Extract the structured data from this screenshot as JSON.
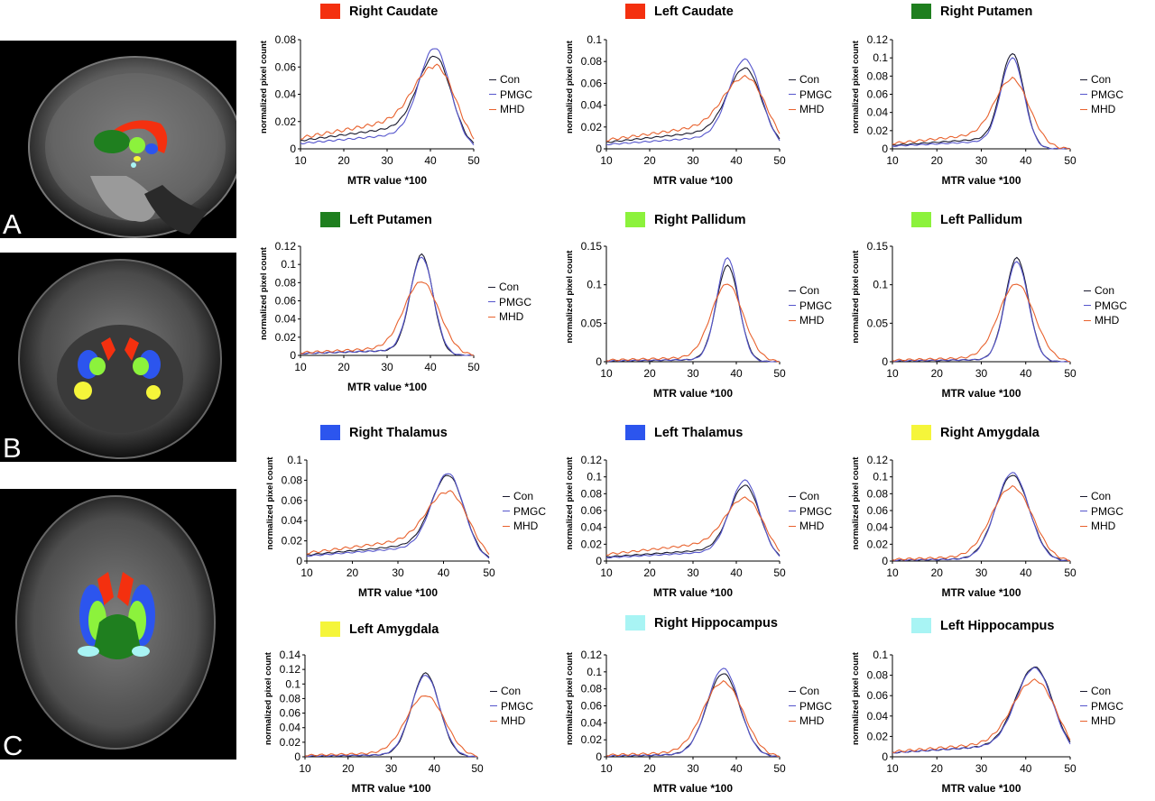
{
  "colors": {
    "con": "#1a1a2e",
    "pmgc": "#5555cc",
    "mhd": "#e8622e",
    "caudate": "#f4300f",
    "putamen": "#1f7f1f",
    "pallidum": "#8cf23c",
    "thalamus": "#2c55ee",
    "amygdala": "#f5f53a",
    "hippocampus": "#a8f4f4"
  },
  "panels": [
    {
      "letter": "A",
      "view": "sagittal"
    },
    {
      "letter": "B",
      "view": "coronal"
    },
    {
      "letter": "C",
      "view": "axial"
    }
  ],
  "legend": [
    "Con",
    "PMGC",
    "MHD"
  ],
  "chart_data": [
    {
      "type": "line",
      "title": "Right Caudate",
      "swatch": "caudate",
      "xlabel": "MTR value *100",
      "ylabel": "normalized pixel count",
      "xlim": [
        10,
        50
      ],
      "ylim": [
        0,
        0.08
      ],
      "xticks": [
        "10",
        "20",
        "30",
        "40",
        "50"
      ],
      "yticks": [
        "0",
        "0.02",
        "0.04",
        "0.06",
        "0.08"
      ],
      "peak": 41,
      "peaks": [
        0.068,
        0.074,
        0.06
      ],
      "base": [
        0.006,
        0.004,
        0.008
      ],
      "width": [
        3.8,
        3.6,
        4.4
      ],
      "mhdBroad": 1.0
    },
    {
      "type": "line",
      "title": "Left Caudate",
      "swatch": "caudate",
      "xlabel": "MTR value *100",
      "ylabel": "normalized pixel count",
      "xlim": [
        10,
        50
      ],
      "ylim": [
        0,
        0.1
      ],
      "xticks": [
        "10",
        "20",
        "30",
        "40",
        "50"
      ],
      "yticks": [
        "0",
        "0.02",
        "0.04",
        "0.06",
        "0.08",
        "0.1"
      ],
      "peak": 42,
      "peaks": [
        0.074,
        0.082,
        0.065
      ],
      "base": [
        0.006,
        0.004,
        0.008
      ],
      "width": [
        3.9,
        3.7,
        4.5
      ],
      "mhdBroad": 1.0
    },
    {
      "type": "line",
      "title": "Right Putamen",
      "swatch": "putamen",
      "xlabel": "MTR value *100",
      "ylabel": "normalized pixel count",
      "xlim": [
        10,
        50
      ],
      "ylim": [
        0,
        0.12
      ],
      "xticks": [
        "10",
        "20",
        "30",
        "40",
        "50"
      ],
      "yticks": [
        "0",
        "0.02",
        "0.04",
        "0.06",
        "0.08",
        "0.1",
        "0.12"
      ],
      "peak": 37,
      "peaks": [
        0.105,
        0.1,
        0.076
      ],
      "base": [
        0.004,
        0.003,
        0.006
      ],
      "width": [
        2.6,
        2.6,
        3.6
      ],
      "mhdBroad": 1.2
    },
    {
      "type": "line",
      "title": "Left Putamen",
      "swatch": "putamen",
      "xlabel": "MTR value *100",
      "ylabel": "normalized pixel count",
      "xlim": [
        10,
        50
      ],
      "ylim": [
        0,
        0.12
      ],
      "xticks": [
        "10",
        "20",
        "30",
        "40",
        "50"
      ],
      "yticks": [
        "0",
        "0.02",
        "0.04",
        "0.06",
        "0.08",
        "0.1",
        "0.12"
      ],
      "peak": 38,
      "peaks": [
        0.111,
        0.108,
        0.08
      ],
      "base": [
        0.002,
        0.002,
        0.003
      ],
      "width": [
        2.6,
        2.7,
        3.8
      ],
      "mhdBroad": 1.2
    },
    {
      "type": "line",
      "title": "Right Pallidum",
      "swatch": "pallidum",
      "xlabel": "MTR value *100",
      "ylabel": "normalized pixel count",
      "xlim": [
        10,
        50
      ],
      "ylim": [
        0,
        0.15
      ],
      "xticks": [
        "10",
        "20",
        "30",
        "40",
        "50"
      ],
      "yticks": [
        "0",
        "0.05",
        "0.1",
        "0.15"
      ],
      "peak": 38,
      "peaks": [
        0.125,
        0.135,
        0.1
      ],
      "base": [
        0.001,
        0.001,
        0.002
      ],
      "width": [
        2.6,
        2.5,
        3.5
      ],
      "mhdBroad": 1.3
    },
    {
      "type": "line",
      "title": "Left Pallidum",
      "swatch": "pallidum",
      "xlabel": "MTR value *100",
      "ylabel": "normalized pixel count",
      "xlim": [
        10,
        50
      ],
      "ylim": [
        0,
        0.15
      ],
      "xticks": [
        "10",
        "20",
        "30",
        "40",
        "50"
      ],
      "yticks": [
        "0",
        "0.05",
        "0.1",
        "0.15"
      ],
      "peak": 38,
      "peaks": [
        0.135,
        0.13,
        0.1
      ],
      "base": [
        0.001,
        0.001,
        0.002
      ],
      "width": [
        2.6,
        2.6,
        3.8
      ],
      "mhdBroad": 1.3
    },
    {
      "type": "line",
      "title": "Right Thalamus",
      "swatch": "thalamus",
      "xlabel": "MTR value *100",
      "ylabel": "normalized pixel count",
      "xlim": [
        10,
        50
      ],
      "ylim": [
        0,
        0.1
      ],
      "xticks": [
        "10",
        "20",
        "30",
        "40",
        "50"
      ],
      "yticks": [
        "0",
        "0.02",
        "0.04",
        "0.06",
        "0.08",
        "0.1"
      ],
      "peak": 41,
      "peaks": [
        0.085,
        0.087,
        0.068
      ],
      "base": [
        0.006,
        0.005,
        0.008
      ],
      "width": [
        3.6,
        3.5,
        4.2
      ],
      "mhdBroad": 1.0
    },
    {
      "type": "line",
      "title": "Left Thalamus",
      "swatch": "thalamus",
      "xlabel": "MTR value *100",
      "ylabel": "normalized pixel count",
      "xlim": [
        10,
        50
      ],
      "ylim": [
        0,
        0.12
      ],
      "xticks": [
        "10",
        "20",
        "30",
        "40",
        "50"
      ],
      "yticks": [
        "0",
        "0.02",
        "0.04",
        "0.06",
        "0.08",
        "0.1",
        "0.12"
      ],
      "peak": 42,
      "peaks": [
        0.09,
        0.096,
        0.074
      ],
      "base": [
        0.005,
        0.004,
        0.008
      ],
      "width": [
        3.5,
        3.4,
        4.1
      ],
      "mhdBroad": 1.0
    },
    {
      "type": "line",
      "title": "Right Amygdala",
      "swatch": "amygdala",
      "xlabel": "MTR value *100",
      "ylabel": "normalized pixel count",
      "xlim": [
        10,
        50
      ],
      "ylim": [
        0,
        0.12
      ],
      "xticks": [
        "10",
        "20",
        "30",
        "40",
        "50"
      ],
      "yticks": [
        "0",
        "0.02",
        "0.04",
        "0.06",
        "0.08",
        "0.1",
        "0.12"
      ],
      "peak": 37,
      "peaks": [
        0.102,
        0.105,
        0.087
      ],
      "base": [
        0.001,
        0.001,
        0.002
      ],
      "width": [
        3.8,
        3.7,
        4.4
      ],
      "mhdBroad": 1.0
    },
    {
      "type": "line",
      "title": "Left Amygdala",
      "swatch": "amygdala",
      "xlabel": "MTR value *100",
      "ylabel": "normalized pixel count",
      "xlim": [
        10,
        50
      ],
      "ylim": [
        0,
        0.14
      ],
      "xticks": [
        "10",
        "20",
        "30",
        "40",
        "50"
      ],
      "yticks": [
        "0",
        "0.02",
        "0.04",
        "0.06",
        "0.08",
        "0.1",
        "0.12",
        "0.14"
      ],
      "peak": 38,
      "peaks": [
        0.115,
        0.112,
        0.083
      ],
      "base": [
        0.001,
        0.001,
        0.002
      ],
      "width": [
        3.2,
        3.3,
        4.2
      ],
      "mhdBroad": 1.1
    },
    {
      "type": "line",
      "title": "Right Hippocampus",
      "swatch": "hippocampus",
      "xlabel": "MTR value *100",
      "ylabel": "normalized pixel count",
      "xlim": [
        10,
        50
      ],
      "ylim": [
        0,
        0.12
      ],
      "xticks": [
        "10",
        "20",
        "30",
        "40",
        "50"
      ],
      "yticks": [
        "0",
        "0.02",
        "0.04",
        "0.06",
        "0.08",
        "0.1",
        "0.12"
      ],
      "peak": 37,
      "peaks": [
        0.098,
        0.104,
        0.087
      ],
      "base": [
        0.001,
        0.001,
        0.002
      ],
      "width": [
        3.8,
        3.7,
        4.4
      ],
      "mhdBroad": 1.0
    },
    {
      "type": "line",
      "title": "Left Hippocampus",
      "swatch": "hippocampus",
      "xlabel": "MTR value *100",
      "ylabel": "normalized pixel count",
      "xlim": [
        10,
        50
      ],
      "ylim": [
        0,
        0.1
      ],
      "xticks": [
        "10",
        "20",
        "30",
        "40",
        "50"
      ],
      "yticks": [
        "0",
        "0.02",
        "0.04",
        "0.06",
        "0.08",
        "0.1"
      ],
      "peak": 42,
      "peaks": [
        0.088,
        0.087,
        0.074
      ],
      "base": [
        0.004,
        0.004,
        0.005
      ],
      "width": [
        4.2,
        4.1,
        4.6
      ],
      "mhdBroad": 1.0
    }
  ]
}
